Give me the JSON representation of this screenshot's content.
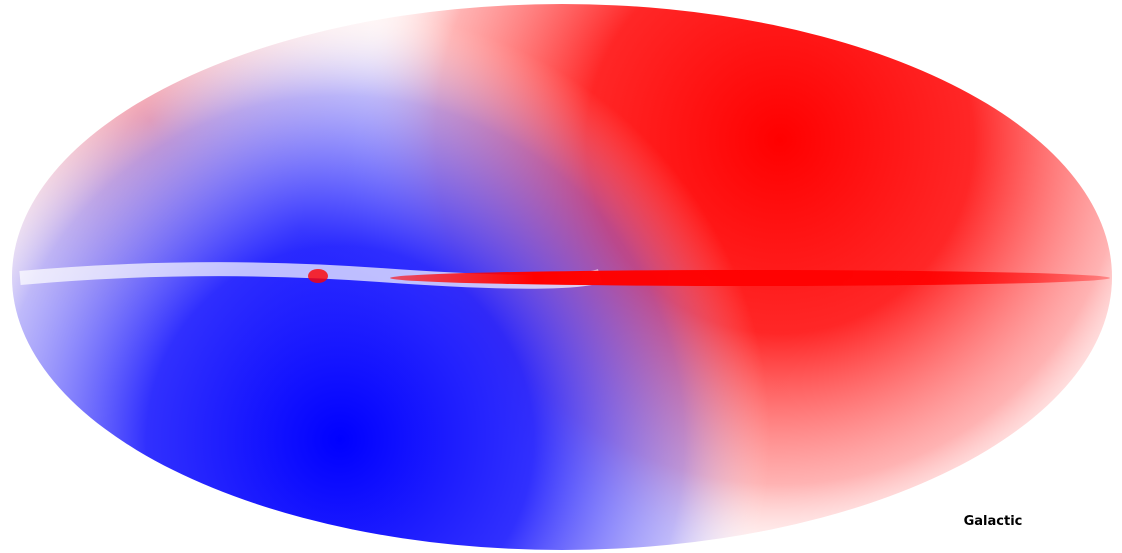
{
  "label": "Galactic"
}
